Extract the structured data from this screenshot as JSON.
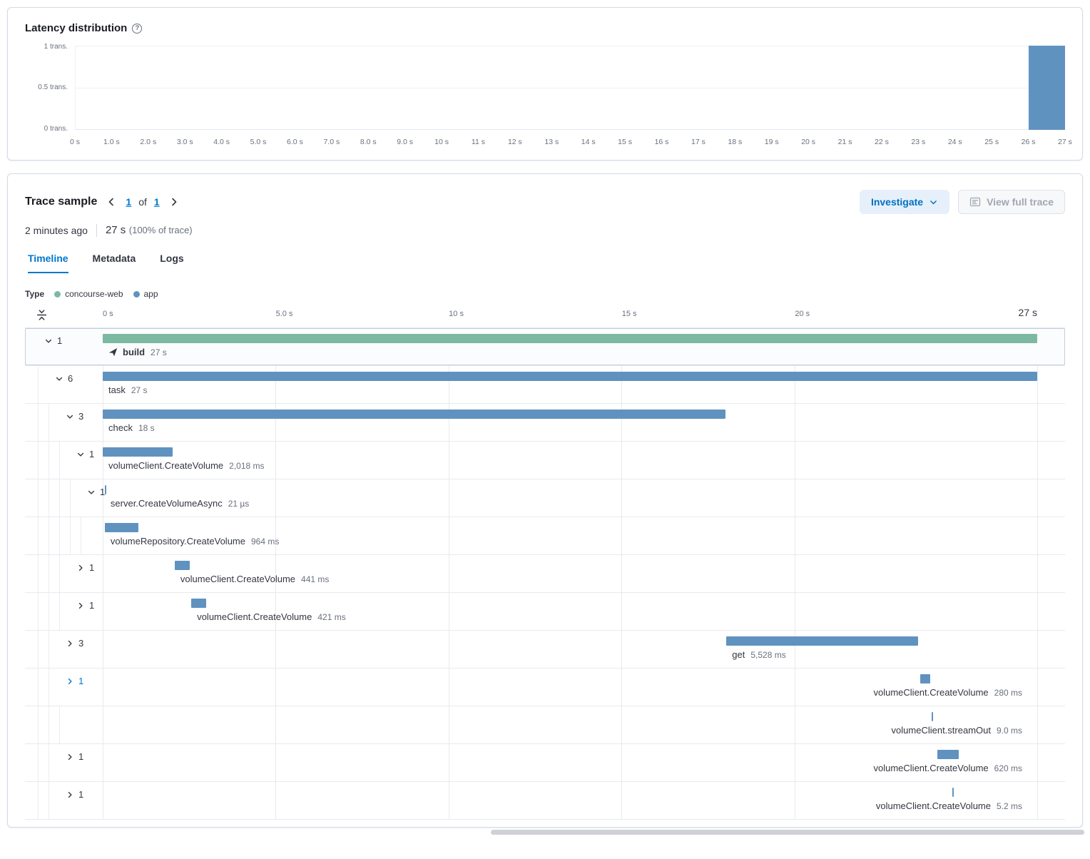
{
  "colors": {
    "bar_blue": "#6092c0",
    "bar_green": "#7cb9a2",
    "link_blue": "#0077cc",
    "text_dark": "#343741",
    "text_gray": "#69707d",
    "border": "#d3dae6",
    "investigate_bg": "#e6f0fa"
  },
  "latency_panel": {
    "title": "Latency distribution",
    "info_icon": "question-in-circle",
    "chart_data": {
      "type": "bar",
      "title": "Latency distribution",
      "xlabel": "",
      "ylabel": "",
      "y_ticks": [
        "1 trans.",
        "0.5 trans.",
        "0 trans."
      ],
      "y_range_transactions": [
        0,
        1
      ],
      "x_range_seconds": [
        0,
        27
      ],
      "x_tick_labels": [
        "0 s",
        "1.0 s",
        "2.0 s",
        "3.0 s",
        "4.0 s",
        "5.0 s",
        "6.0 s",
        "7.0 s",
        "8.0 s",
        "9.0 s",
        "10 s",
        "11 s",
        "12 s",
        "13 s",
        "14 s",
        "15 s",
        "16 s",
        "17 s",
        "18 s",
        "19 s",
        "20 s",
        "21 s",
        "22 s",
        "23 s",
        "24 s",
        "25 s",
        "26 s",
        "27 s"
      ],
      "bars": [
        {
          "from_s": 26,
          "to_s": 27,
          "transactions": 1
        }
      ]
    }
  },
  "trace_panel": {
    "title": "Trace sample",
    "pagination": {
      "current": "1",
      "of_label": "of",
      "total": "1"
    },
    "investigate_label": "Investigate",
    "investigate_icon": "chevron-down",
    "view_full_trace_label": "View full trace",
    "view_full_trace_icon": "trace-window",
    "timestamp": "2 minutes ago",
    "duration_value": "27 s",
    "duration_note": "(100% of trace)",
    "tabs": [
      {
        "label": "Timeline",
        "active": true
      },
      {
        "label": "Metadata",
        "active": false
      },
      {
        "label": "Logs",
        "active": false
      }
    ],
    "legend": {
      "label": "Type",
      "items": [
        {
          "name": "concourse-web",
          "color": "#7cb9a2"
        },
        {
          "name": "app",
          "color": "#6092c0"
        }
      ]
    },
    "total_s": 27,
    "axis_ticks": [
      {
        "label": "0 s",
        "s": 0
      },
      {
        "label": "5.0 s",
        "s": 5
      },
      {
        "label": "10 s",
        "s": 10
      },
      {
        "label": "15 s",
        "s": 15
      },
      {
        "label": "20 s",
        "s": 20
      },
      {
        "label": "27 s",
        "s": 27
      }
    ],
    "rows": [
      {
        "toggle": "down",
        "count": "1",
        "depth": 0,
        "icon": "paper-plane",
        "name": "build",
        "bold": true,
        "duration": "27 s",
        "start_s": 0,
        "len_s": 27,
        "color": "green",
        "selected": true
      },
      {
        "toggle": "down",
        "count": "6",
        "depth": 1,
        "name": "task",
        "duration": "27 s",
        "start_s": 0,
        "len_s": 27,
        "color": "blue"
      },
      {
        "toggle": "down",
        "count": "3",
        "depth": 2,
        "name": "check",
        "duration": "18 s",
        "start_s": 0,
        "len_s": 18,
        "color": "blue"
      },
      {
        "toggle": "down",
        "count": "1",
        "depth": 3,
        "name": "volumeClient.CreateVolume",
        "duration": "2,018 ms",
        "start_s": 0,
        "len_s": 2.018,
        "color": "blue"
      },
      {
        "toggle": "down",
        "count": "1",
        "depth": 4,
        "name": "server.CreateVolumeAsync",
        "duration": "21 µs",
        "start_s": 0.06,
        "len_s": 2.1e-05,
        "color": "blue"
      },
      {
        "toggle": "none",
        "count": "",
        "depth": 5,
        "name": "volumeRepository.CreateVolume",
        "duration": "964 ms",
        "start_s": 0.06,
        "len_s": 0.964,
        "color": "blue"
      },
      {
        "toggle": "right",
        "count": "1",
        "depth": 3,
        "name": "volumeClient.CreateVolume",
        "duration": "441 ms",
        "start_s": 2.08,
        "len_s": 0.441,
        "color": "blue"
      },
      {
        "toggle": "right",
        "count": "1",
        "depth": 3,
        "name": "volumeClient.CreateVolume",
        "duration": "421 ms",
        "start_s": 2.56,
        "len_s": 0.421,
        "color": "blue"
      },
      {
        "toggle": "right",
        "count": "3",
        "depth": 2,
        "name": "get",
        "duration": "5,528 ms",
        "start_s": 18.02,
        "len_s": 5.528,
        "color": "blue"
      },
      {
        "toggle": "right",
        "count": "1",
        "depth": 2,
        "link": true,
        "name": "volumeClient.CreateVolume",
        "duration": "280 ms",
        "start_s": 23.62,
        "len_s": 0.28,
        "color": "blue",
        "label_align": "right"
      },
      {
        "toggle": "none",
        "count": "",
        "depth": 3,
        "name": "volumeClient.streamOut",
        "duration": "9.0 ms",
        "start_s": 23.95,
        "len_s": 0.009,
        "color": "blue",
        "label_align": "right"
      },
      {
        "toggle": "right",
        "count": "1",
        "depth": 2,
        "name": "volumeClient.CreateVolume",
        "duration": "620 ms",
        "start_s": 24.12,
        "len_s": 0.62,
        "color": "blue",
        "label_align": "right"
      },
      {
        "toggle": "right",
        "count": "1",
        "depth": 2,
        "name": "volumeClient.CreateVolume",
        "duration": "5.2 ms",
        "start_s": 24.55,
        "len_s": 0.0052,
        "color": "blue",
        "label_align": "right"
      }
    ]
  }
}
